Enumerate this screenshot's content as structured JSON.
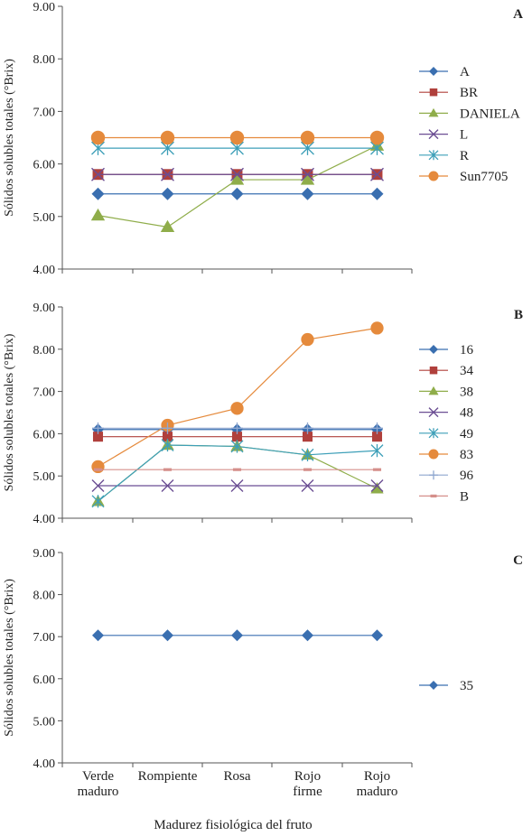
{
  "x_categories": [
    [
      "Verde",
      "maduro"
    ],
    [
      "Rompiente"
    ],
    [
      "Rosa"
    ],
    [
      "Rojo",
      "firme"
    ],
    [
      "Rojo",
      "maduro"
    ]
  ],
  "x_axis_label": "Madurez fisiológica del fruto",
  "chart_data": [
    {
      "type": "line",
      "panel_label": "A",
      "ylabel": "Sólidos solubles totales (°Brix)",
      "ylim": [
        4.0,
        9.0
      ],
      "yticks": [
        "4.00",
        "5.00",
        "6.00",
        "7.00",
        "8.00",
        "9.00"
      ],
      "categories": [
        "Verde maduro",
        "Rompiente",
        "Rosa",
        "Rojo firme",
        "Rojo maduro"
      ],
      "legend_position": "right",
      "series": [
        {
          "name": "A",
          "values": [
            5.43,
            5.43,
            5.43,
            5.43,
            5.43
          ],
          "color": "#3a6fb0",
          "marker": "diamond"
        },
        {
          "name": "BR",
          "values": [
            5.8,
            5.8,
            5.8,
            5.8,
            5.8
          ],
          "color": "#b0403c",
          "marker": "square"
        },
        {
          "name": "DANIELA",
          "values": [
            5.02,
            4.8,
            5.7,
            5.7,
            6.35
          ],
          "color": "#8fad4a",
          "marker": "triangle"
        },
        {
          "name": "L",
          "values": [
            5.8,
            5.8,
            5.8,
            5.8,
            5.8
          ],
          "color": "#6b4e93",
          "marker": "x"
        },
        {
          "name": "R",
          "values": [
            6.3,
            6.3,
            6.3,
            6.3,
            6.3
          ],
          "color": "#3d9fb8",
          "marker": "star"
        },
        {
          "name": "Sun7705",
          "values": [
            6.5,
            6.5,
            6.5,
            6.5,
            6.5
          ],
          "color": "#e58a3c",
          "marker": "circle"
        }
      ]
    },
    {
      "type": "line",
      "panel_label": "B",
      "ylabel": "Sólidos solubles totales (°Brix)",
      "ylim": [
        4.0,
        9.0
      ],
      "yticks": [
        "4.00",
        "5.00",
        "6.00",
        "7.00",
        "8.00",
        "9.00"
      ],
      "categories": [
        "Verde maduro",
        "Rompiente",
        "Rosa",
        "Rojo firme",
        "Rojo maduro"
      ],
      "legend_position": "right",
      "series": [
        {
          "name": "16",
          "values": [
            6.1,
            6.1,
            6.1,
            6.1,
            6.1
          ],
          "color": "#3a6fb0",
          "marker": "diamond"
        },
        {
          "name": "34",
          "values": [
            5.93,
            5.93,
            5.93,
            5.93,
            5.93
          ],
          "color": "#b0403c",
          "marker": "square"
        },
        {
          "name": "38",
          "values": [
            4.4,
            5.73,
            5.7,
            5.5,
            4.7
          ],
          "color": "#8fad4a",
          "marker": "triangle"
        },
        {
          "name": "48",
          "values": [
            4.77,
            4.77,
            4.77,
            4.77,
            4.77
          ],
          "color": "#6b4e93",
          "marker": "x"
        },
        {
          "name": "49",
          "values": [
            4.4,
            5.73,
            5.7,
            5.5,
            5.6
          ],
          "color": "#3d9fb8",
          "marker": "star"
        },
        {
          "name": "83",
          "values": [
            5.22,
            6.2,
            6.6,
            8.23,
            8.5
          ],
          "color": "#e58a3c",
          "marker": "circle"
        },
        {
          "name": "96",
          "values": [
            6.13,
            6.13,
            6.13,
            6.13,
            6.13
          ],
          "color": "#8fa7cf",
          "marker": "plus"
        },
        {
          "name": "B",
          "values": [
            5.15,
            5.15,
            5.15,
            5.15,
            5.15
          ],
          "color": "#d58f8b",
          "marker": "dash"
        }
      ]
    },
    {
      "type": "line",
      "panel_label": "C",
      "ylabel": "Sólidos solubles totales (°Brix)",
      "ylim": [
        4.0,
        9.0
      ],
      "yticks": [
        "4.00",
        "5.00",
        "6.00",
        "7.00",
        "8.00",
        "9.00"
      ],
      "categories": [
        "Verde maduro",
        "Rompiente",
        "Rosa",
        "Rojo firme",
        "Rojo maduro"
      ],
      "legend_position": "right",
      "series": [
        {
          "name": "35",
          "values": [
            7.03,
            7.03,
            7.03,
            7.03,
            7.03
          ],
          "color": "#3a6fb0",
          "marker": "diamond"
        }
      ]
    }
  ]
}
